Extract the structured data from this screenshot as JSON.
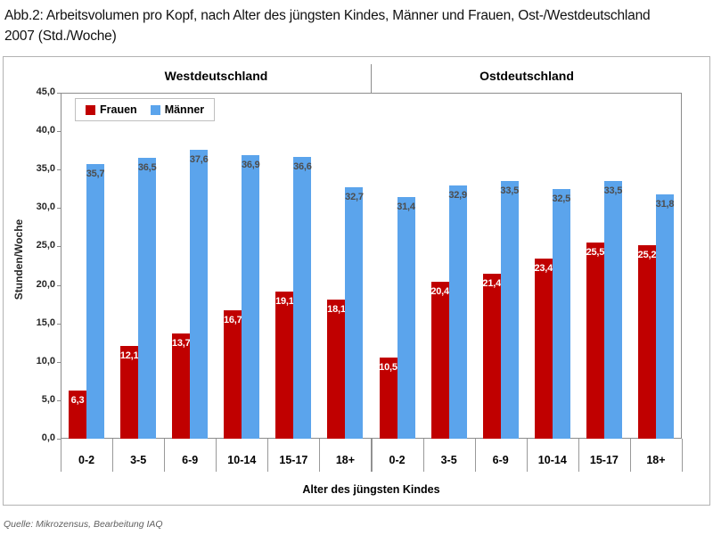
{
  "page": {
    "title": "Abb.2: Arbeitsvolumen pro Kopf, nach Alter des jüngsten Kindes, Männer und Frauen, Ost-/Westdeutschland 2007 (Std./Woche)",
    "source": "Quelle: Mikrozensus, Bearbeitung IAQ"
  },
  "chart_data": {
    "type": "bar",
    "xlabel": "Alter des jüngsten Kindes",
    "ylabel": "Stunden/Woche",
    "ylim": [
      0,
      45
    ],
    "ytick_step": 5,
    "decimal_separator": ",",
    "grid": false,
    "categories": [
      "0-2",
      "3-5",
      "6-9",
      "10-14",
      "15-17",
      "18+"
    ],
    "panels": [
      {
        "label": "Westdeutschland",
        "series": [
          {
            "name": "Frauen",
            "values": [
              6.3,
              12.1,
              13.7,
              16.7,
              19.1,
              18.1
            ]
          },
          {
            "name": "Männer",
            "values": [
              35.7,
              36.5,
              37.6,
              36.9,
              36.6,
              32.7
            ]
          }
        ]
      },
      {
        "label": "Ostdeutschland",
        "series": [
          {
            "name": "Frauen",
            "values": [
              10.5,
              20.4,
              21.4,
              23.4,
              25.5,
              25.2
            ]
          },
          {
            "name": "Männer",
            "values": [
              31.4,
              32.9,
              33.5,
              32.5,
              33.5,
              31.8
            ]
          }
        ]
      }
    ],
    "legend": {
      "position": "top-left",
      "items": [
        {
          "label": "Frauen",
          "color": "#c00000",
          "value_label_color": "#ffffff"
        },
        {
          "label": "Männer",
          "color": "#5ba4ec",
          "value_label_color": "#4d4d4d"
        }
      ]
    }
  }
}
